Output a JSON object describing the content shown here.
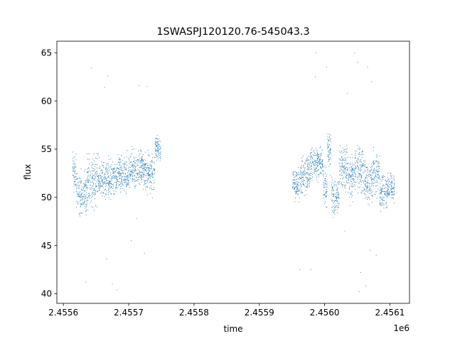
{
  "chart_data": {
    "type": "scatter",
    "title": "1SWASPJ120120.76-545043.3",
    "xlabel": "time",
    "ylabel": "flux",
    "x_offset_label": "1e6",
    "xlim": [
      2455590,
      2456130
    ],
    "ylim": [
      39.0,
      66.2
    ],
    "xticks": [
      2455600,
      2455700,
      2455800,
      2455900,
      2456000,
      2456100
    ],
    "xtick_labels": [
      "2.4556",
      "2.4557",
      "2.4558",
      "2.4559",
      "2.4560",
      "2.4561"
    ],
    "yticks": [
      40,
      45,
      50,
      55,
      60,
      65
    ],
    "ytick_labels": [
      "40",
      "45",
      "50",
      "55",
      "60",
      "65"
    ],
    "grid": false,
    "legend": "none",
    "series": [
      {
        "color": "#1f77b4",
        "marker": "point",
        "segments": [
          {
            "x": [
              2455614,
              2455620
            ],
            "center": 52.5,
            "spread": 2.6
          },
          {
            "x": [
              2455620,
              2455636
            ],
            "center": 50.5,
            "spread": 3.3
          },
          {
            "x": [
              2455636,
              2455652
            ],
            "center": 51.5,
            "spread": 3.8
          },
          {
            "x": [
              2455652,
              2455666
            ],
            "center": 52.0,
            "spread": 3.0
          },
          {
            "x": [
              2455666,
              2455682
            ],
            "center": 52.0,
            "spread": 2.8
          },
          {
            "x": [
              2455682,
              2455702
            ],
            "center": 52.5,
            "spread": 2.6
          },
          {
            "x": [
              2455702,
              2455722
            ],
            "center": 53.0,
            "spread": 2.6
          },
          {
            "x": [
              2455722,
              2455740
            ],
            "center": 52.5,
            "spread": 2.8
          },
          {
            "x": [
              2455740,
              2455749
            ],
            "center": 55.0,
            "spread": 2.0
          },
          {
            "x": [
              2455951,
              2455965
            ],
            "center": 51.5,
            "spread": 2.5
          },
          {
            "x": [
              2455965,
              2455978
            ],
            "center": 52.5,
            "spread": 2.8
          },
          {
            "x": [
              2455978,
              2455990
            ],
            "center": 53.5,
            "spread": 2.2
          },
          {
            "x": [
              2455990,
              2455998
            ],
            "center": 53.5,
            "spread": 2.4
          },
          {
            "x": [
              2455998,
              2456004
            ],
            "center": 51.0,
            "spread": 2.5
          },
          {
            "x": [
              2456004,
              2456010
            ],
            "center": 55.0,
            "spread": 3.0
          },
          {
            "x": [
              2456010,
              2456022
            ],
            "center": 50.0,
            "spread": 2.8
          },
          {
            "x": [
              2456022,
              2456036
            ],
            "center": 53.0,
            "spread": 3.3
          },
          {
            "x": [
              2456036,
              2456046
            ],
            "center": 52.0,
            "spread": 3.2
          },
          {
            "x": [
              2456046,
              2456060
            ],
            "center": 53.0,
            "spread": 3.3
          },
          {
            "x": [
              2456060,
              2456074
            ],
            "center": 51.5,
            "spread": 3.3
          },
          {
            "x": [
              2456074,
              2456084
            ],
            "center": 52.5,
            "spread": 3.0
          },
          {
            "x": [
              2456084,
              2456096
            ],
            "center": 50.5,
            "spread": 2.5
          },
          {
            "x": [
              2456096,
              2456107
            ],
            "center": 51.0,
            "spread": 2.2
          }
        ],
        "outliers": [
          [
            2455643,
            63.4
          ],
          [
            2455663,
            61.4
          ],
          [
            2455668,
            62.6
          ],
          [
            2455634,
            41.2
          ],
          [
            2455666,
            43.6
          ],
          [
            2455682,
            40.4
          ],
          [
            2455716,
            61.6
          ],
          [
            2455704,
            45.5
          ],
          [
            2455724,
            44.2
          ],
          [
            2455728,
            61.5
          ],
          [
            2455675,
            41.0
          ],
          [
            2455712,
            47.8
          ],
          [
            2455987,
            65.0
          ],
          [
            2455986,
            62.5
          ],
          [
            2455979,
            42.5
          ],
          [
            2456003,
            63.5
          ],
          [
            2456046,
            65.0
          ],
          [
            2456050,
            64.0
          ],
          [
            2456066,
            63.5
          ],
          [
            2456053,
            40.2
          ],
          [
            2456055,
            42.2
          ],
          [
            2456070,
            44.5
          ],
          [
            2456063,
            40.8
          ],
          [
            2455962,
            42.5
          ],
          [
            2456079,
            44.0
          ],
          [
            2456035,
            60.8
          ],
          [
            2456072,
            62.0
          ],
          [
            2456031,
            46.5
          ]
        ]
      }
    ]
  }
}
